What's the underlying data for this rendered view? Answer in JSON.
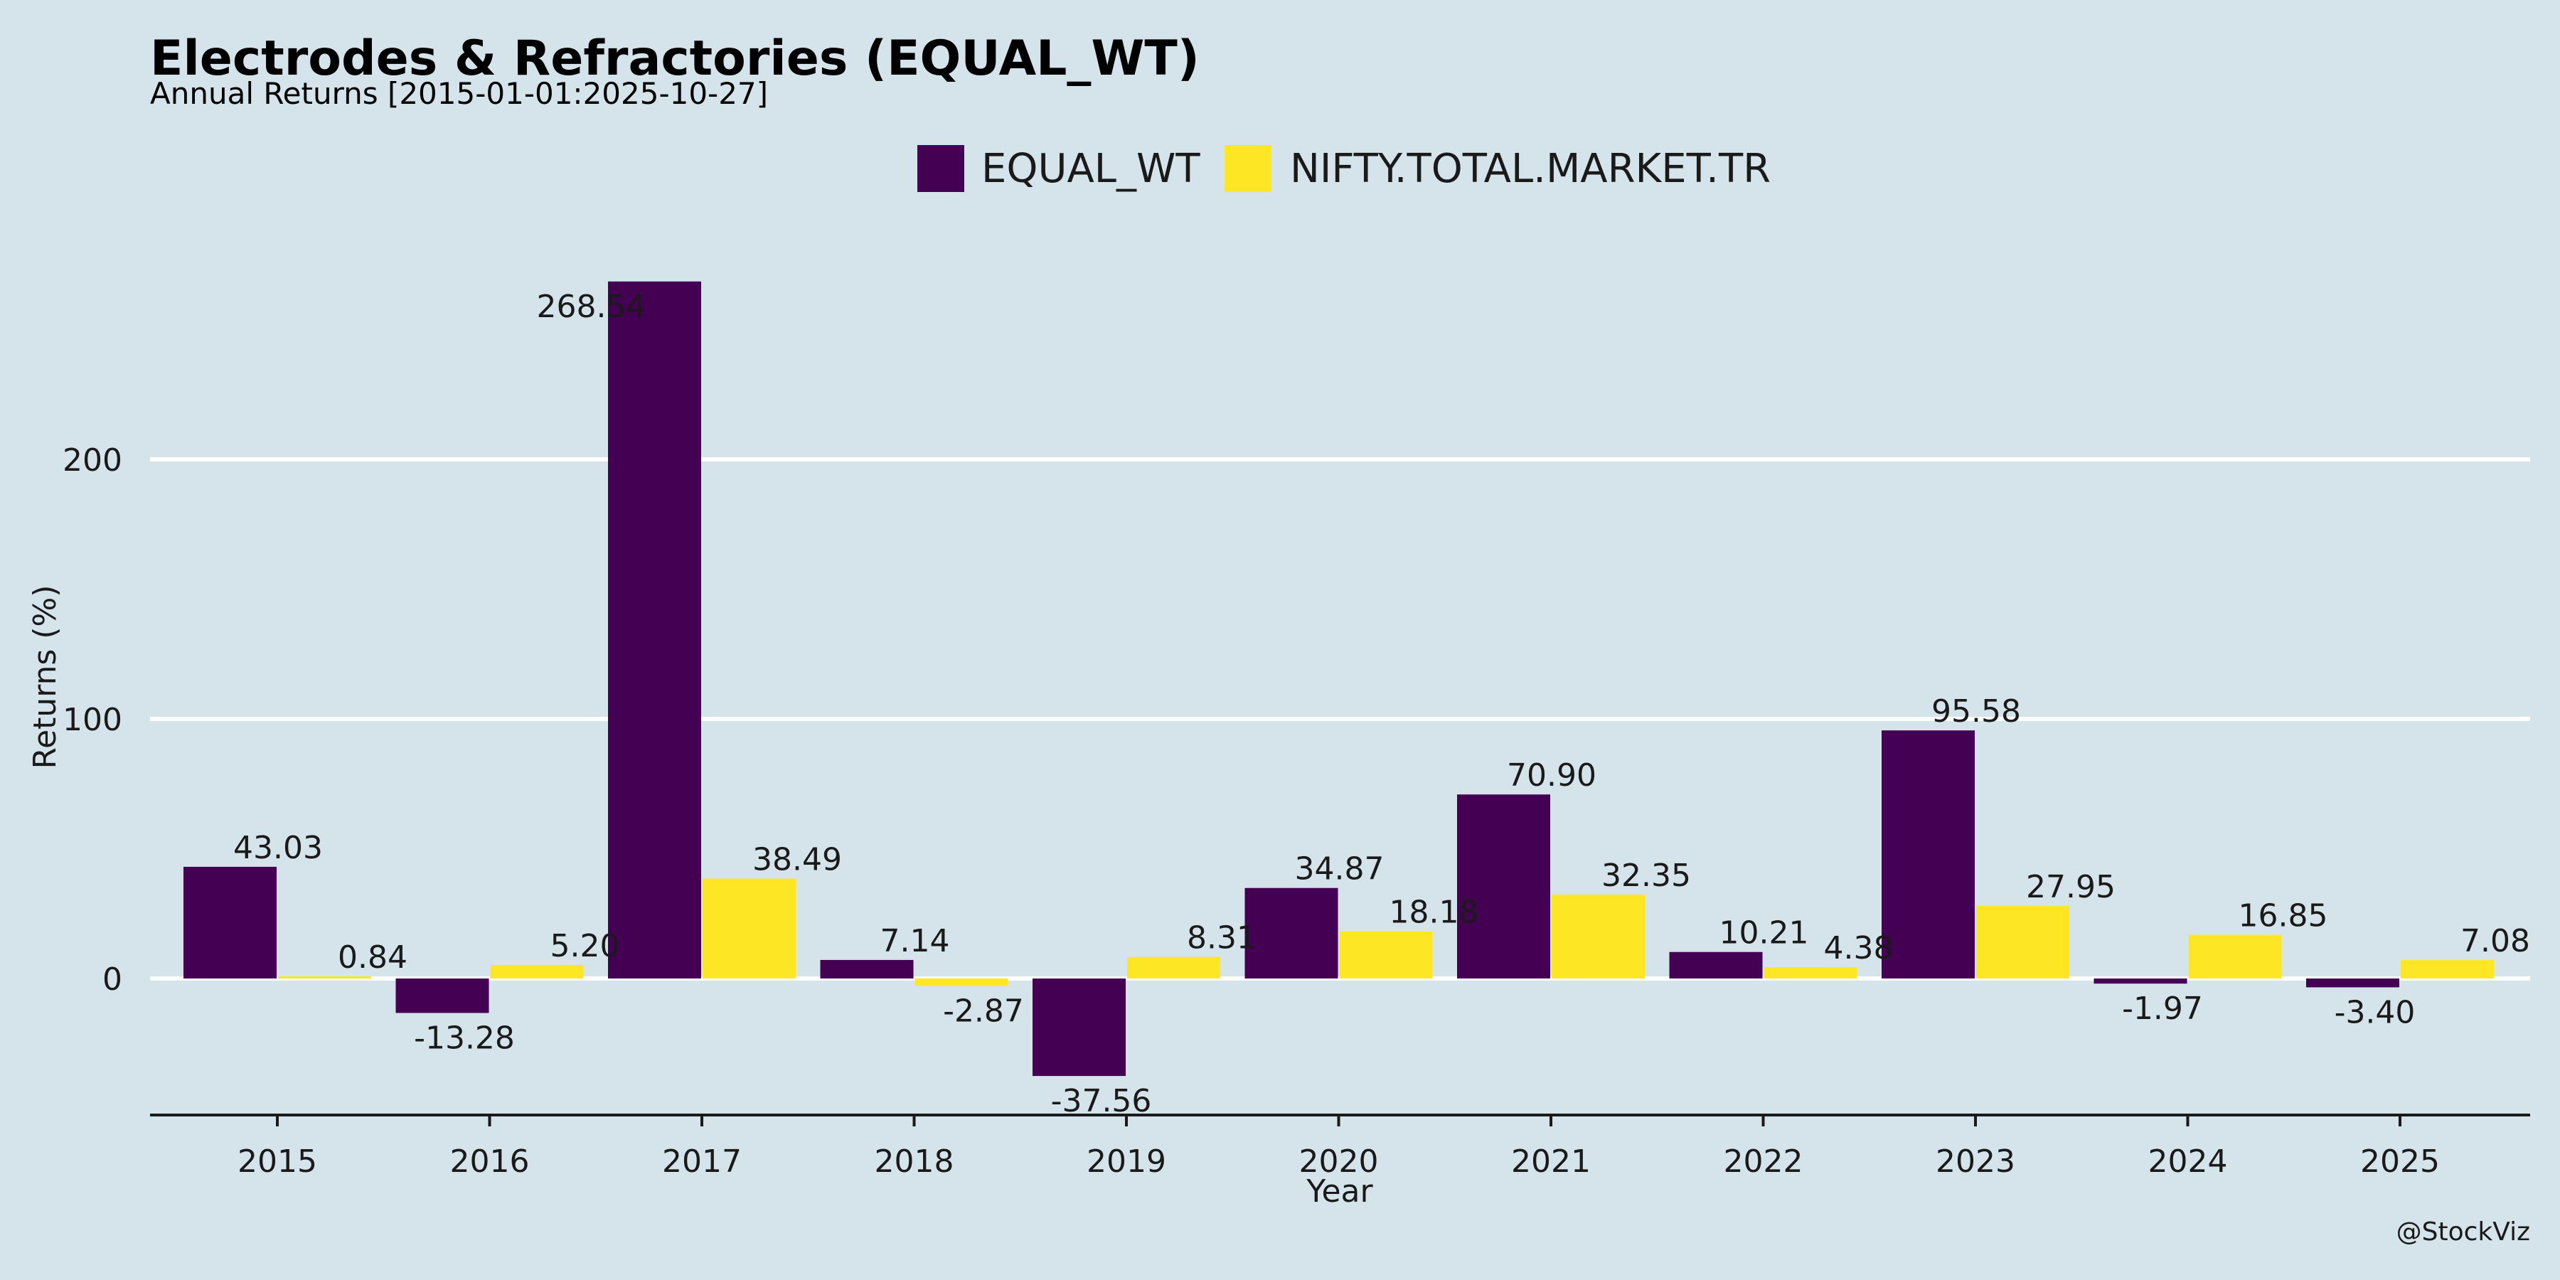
{
  "chart_data": {
    "type": "bar",
    "title": "Electrodes & Refractories (EQUAL_WT)",
    "subtitle": "Annual Returns [2015-01-01:2025-10-27]",
    "xlabel": "Year",
    "ylabel": "Returns (%)",
    "categories": [
      "2015",
      "2016",
      "2017",
      "2018",
      "2019",
      "2020",
      "2021",
      "2022",
      "2023",
      "2024",
      "2025"
    ],
    "series": [
      {
        "name": "EQUAL_WT",
        "color": "#440154",
        "values": [
          43.03,
          -13.28,
          268.54,
          7.14,
          -37.56,
          34.87,
          70.9,
          10.21,
          95.58,
          -1.97,
          -3.4
        ],
        "labels": [
          "43.03",
          "-13.28",
          "268.54",
          "7.14",
          "-37.56",
          "34.87",
          "70.90",
          "10.21",
          "95.58",
          "-1.97",
          "-3.40"
        ]
      },
      {
        "name": "NIFTY.TOTAL.MARKET.TR",
        "color": "#fde725",
        "values": [
          0.84,
          5.2,
          38.49,
          -2.87,
          8.31,
          18.18,
          32.35,
          4.38,
          27.95,
          16.85,
          7.08
        ],
        "labels": [
          "0.84",
          "5.20",
          "38.49",
          "-2.87",
          "8.31",
          "18.18",
          "32.35",
          "4.38",
          "27.95",
          "16.85",
          "7.08"
        ]
      }
    ],
    "yticks": [
      0,
      100,
      200
    ],
    "ylim": [
      -53,
      280
    ],
    "grid": "horizontal",
    "legend_position": "top-center",
    "background": "#d5e4eb",
    "credit": "@StockViz"
  }
}
